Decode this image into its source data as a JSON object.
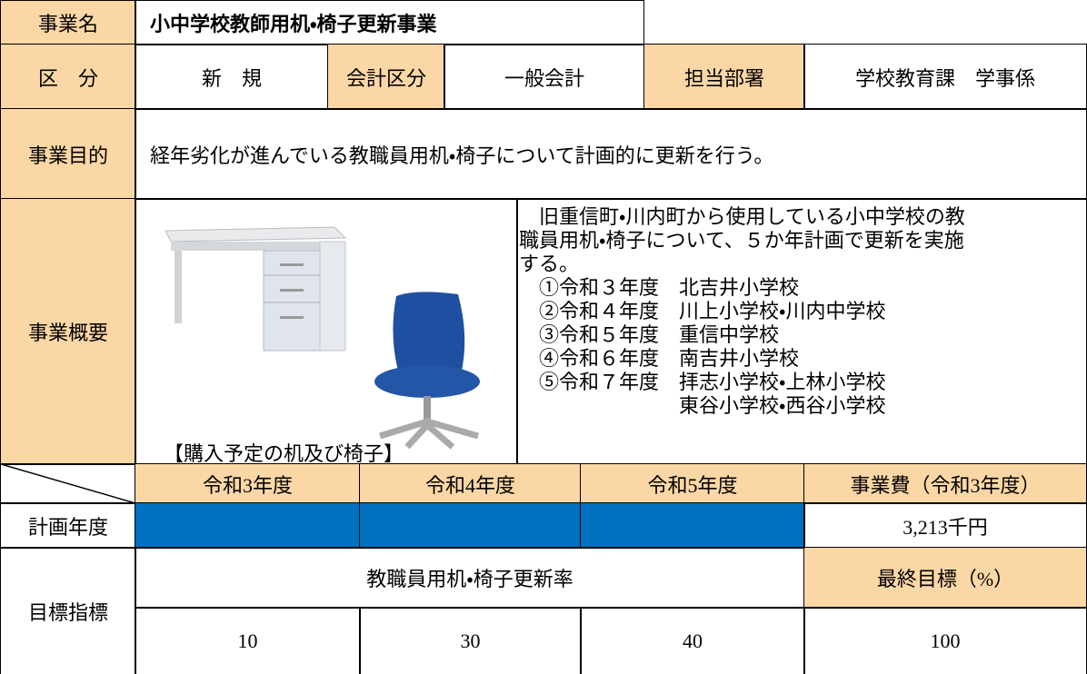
{
  "header": {
    "label": "事業名",
    "title": "小中学校教師用机・椅子更新事業"
  },
  "info": {
    "category_label": "区　分",
    "category": "新　規",
    "account_label": "会計区分",
    "account": "一般会計",
    "dept_label": "担当部署",
    "dept": "学校教育課　学事係"
  },
  "purpose": {
    "label": "事業目的",
    "text": "経年劣化が進んでいる教職員用机・椅子について計画的に更新を行う。"
  },
  "overview": {
    "label": "事業概要",
    "image_caption": "【購入予定の机及び椅子】",
    "intro": [
      "旧重信町・川内町から使用している小中学校の教",
      "職員用机・椅子について、５か年計画で更新を実施",
      "する。"
    ],
    "items": [
      {
        "year": "①令和３年度",
        "schools": [
          "北吉井小学校"
        ]
      },
      {
        "year": "②令和４年度",
        "schools": [
          "川上小学校・川内中学校"
        ]
      },
      {
        "year": "③令和５年度",
        "schools": [
          "重信中学校"
        ]
      },
      {
        "year": "④令和６年度",
        "schools": [
          "南吉井小学校"
        ]
      },
      {
        "year": "⑤令和７年度",
        "schools": [
          "拝志小学校・上林小学校",
          "東谷小学校・西谷小学校"
        ]
      }
    ]
  },
  "schedule": {
    "years": [
      "令和3年度",
      "令和4年度",
      "令和5年度"
    ],
    "cost_label": "事業費（令和3年度）",
    "plan_label": "計画年度",
    "cost": "3,213千円"
  },
  "target": {
    "label": "目標指標",
    "indicator": "教職員用机・椅子更新率",
    "final_label": "最終目標（%）",
    "values": [
      10,
      30,
      40
    ],
    "final": 100
  }
}
